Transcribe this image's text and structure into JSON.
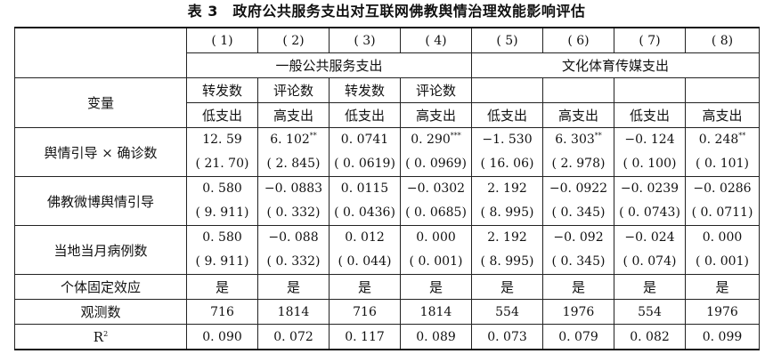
{
  "table_title": "表 3　政府公共服务支出对互联网佛教舆情治理效能影响评估",
  "col_numbers": [
    "( 1)",
    "( 2)",
    "( 3)",
    "( 4)",
    "( 5)",
    "( 6)",
    "( 7)",
    "( 8)"
  ],
  "groups": [
    "一般公共服务支出",
    "文化体育传媒支出"
  ],
  "var_header": "变量",
  "dep_vars": [
    "转发数",
    "评论数",
    "转发数",
    "评论数",
    "",
    "",
    "",
    ""
  ],
  "spend_levels": [
    "低支出",
    "高支出",
    "低支出",
    "高支出",
    "低支出",
    "高支出",
    "低支出",
    "高支出"
  ],
  "rows": [
    {
      "label": "舆情引导 × 确诊数",
      "coef": [
        "12. 59",
        "6. 102",
        "0. 0741",
        "0. 290",
        "−1. 530",
        "6. 303",
        "−0. 124",
        "0. 248"
      ],
      "stars": [
        "",
        "**",
        "",
        "***",
        "",
        "**",
        "",
        "**"
      ],
      "se": [
        "( 21. 70)",
        "( 2. 845)",
        "( 0. 0619)",
        "( 0. 0969)",
        "( 16. 06)",
        "( 2. 978)",
        "( 0. 100)",
        "( 0. 101)"
      ]
    },
    {
      "label": "佛教微博舆情引导",
      "coef": [
        "0. 580",
        "−0. 0883",
        "0. 0115",
        "−0. 0302",
        "2. 192",
        "−0. 0922",
        "−0. 0239",
        "−0. 0286"
      ],
      "stars": [
        "",
        "",
        "",
        "",
        "",
        "",
        "",
        ""
      ],
      "se": [
        "( 9. 911)",
        "( 0. 332)",
        "( 0. 0436)",
        "( 0. 0685)",
        "( 8. 995)",
        "( 0. 345)",
        "( 0. 0743)",
        "( 0. 0711)"
      ]
    },
    {
      "label": "当地当月病例数",
      "coef": [
        "0. 580",
        "−0. 088",
        "0. 012",
        "0. 000",
        "2. 192",
        "−0. 092",
        "−0. 024",
        "0. 000"
      ],
      "stars": [
        "",
        "",
        "",
        "",
        "",
        "",
        "",
        ""
      ],
      "se": [
        "( 9. 911)",
        "( 0. 332)",
        "( 0. 044)",
        "( 0. 001)",
        "( 8. 995)",
        "( 0. 345)",
        "( 0. 074)",
        "( 0. 001)"
      ]
    }
  ],
  "fixed_effect": {
    "label": "个体固定效应",
    "values": [
      "是",
      "是",
      "是",
      "是",
      "是",
      "是",
      "是",
      "是"
    ]
  },
  "obs": {
    "label": "观测数",
    "values": [
      "716",
      "1814",
      "716",
      "1814",
      "554",
      "1976",
      "554",
      "1976"
    ]
  },
  "r2": {
    "label": "R",
    "sup": "2",
    "values": [
      "0. 090",
      "0. 072",
      "0. 117",
      "0. 089",
      "0. 073",
      "0. 079",
      "0. 082",
      "0. 099"
    ]
  }
}
